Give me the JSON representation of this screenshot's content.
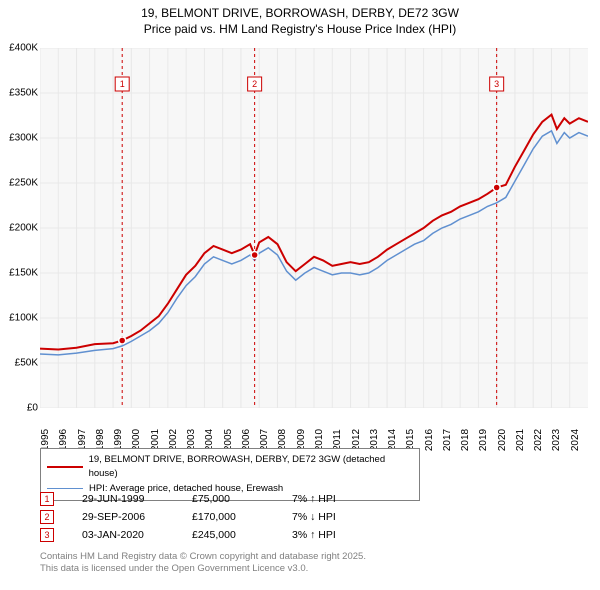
{
  "title": {
    "line1": "19, BELMONT DRIVE, BORROWASH, DERBY, DE72 3GW",
    "line2": "Price paid vs. HM Land Registry's House Price Index (HPI)",
    "fontsize": 12
  },
  "chart": {
    "type": "line",
    "background_color": "#f7f7f7",
    "grid_color": "#e8e8e8",
    "xlim": [
      1995,
      2025
    ],
    "ylim": [
      0,
      400000
    ],
    "y_ticks": [
      0,
      50000,
      100000,
      150000,
      200000,
      250000,
      300000,
      350000,
      400000
    ],
    "y_tick_labels": [
      "£0",
      "£50K",
      "£100K",
      "£150K",
      "£200K",
      "£250K",
      "£300K",
      "£350K",
      "£400K"
    ],
    "x_ticks": [
      1995,
      1996,
      1997,
      1998,
      1999,
      2000,
      2001,
      2002,
      2003,
      2004,
      2005,
      2006,
      2007,
      2008,
      2009,
      2010,
      2011,
      2012,
      2013,
      2014,
      2015,
      2016,
      2017,
      2018,
      2019,
      2020,
      2021,
      2022,
      2023,
      2024
    ],
    "series": [
      {
        "id": "price_paid",
        "label": "19, BELMONT DRIVE, BORROWASH, DERBY, DE72 3GW (detached house)",
        "color": "#cc0000",
        "line_width": 2,
        "points": [
          [
            1995,
            66000
          ],
          [
            1996,
            65000
          ],
          [
            1997,
            67000
          ],
          [
            1998,
            71000
          ],
          [
            1999,
            72000
          ],
          [
            1999.5,
            75000
          ],
          [
            2000,
            80000
          ],
          [
            2000.5,
            86000
          ],
          [
            2001,
            94000
          ],
          [
            2001.5,
            102000
          ],
          [
            2002,
            116000
          ],
          [
            2002.5,
            132000
          ],
          [
            2003,
            148000
          ],
          [
            2003.5,
            158000
          ],
          [
            2004,
            172000
          ],
          [
            2004.5,
            180000
          ],
          [
            2005,
            176000
          ],
          [
            2005.5,
            172000
          ],
          [
            2006,
            176000
          ],
          [
            2006.5,
            182000
          ],
          [
            2006.75,
            170000
          ],
          [
            2007,
            184000
          ],
          [
            2007.5,
            190000
          ],
          [
            2008,
            182000
          ],
          [
            2008.5,
            162000
          ],
          [
            2009,
            152000
          ],
          [
            2009.5,
            160000
          ],
          [
            2010,
            168000
          ],
          [
            2010.5,
            164000
          ],
          [
            2011,
            158000
          ],
          [
            2011.5,
            160000
          ],
          [
            2012,
            162000
          ],
          [
            2012.5,
            160000
          ],
          [
            2013,
            162000
          ],
          [
            2013.5,
            168000
          ],
          [
            2014,
            176000
          ],
          [
            2014.5,
            182000
          ],
          [
            2015,
            188000
          ],
          [
            2015.5,
            194000
          ],
          [
            2016,
            200000
          ],
          [
            2016.5,
            208000
          ],
          [
            2017,
            214000
          ],
          [
            2017.5,
            218000
          ],
          [
            2018,
            224000
          ],
          [
            2018.5,
            228000
          ],
          [
            2019,
            232000
          ],
          [
            2019.5,
            238000
          ],
          [
            2020,
            245000
          ],
          [
            2020.5,
            248000
          ],
          [
            2021,
            268000
          ],
          [
            2021.5,
            286000
          ],
          [
            2022,
            304000
          ],
          [
            2022.5,
            318000
          ],
          [
            2023,
            326000
          ],
          [
            2023.3,
            310000
          ],
          [
            2023.7,
            322000
          ],
          [
            2024,
            316000
          ],
          [
            2024.5,
            322000
          ],
          [
            2025,
            318000
          ]
        ]
      },
      {
        "id": "hpi",
        "label": "HPI: Average price, detached house, Erewash",
        "color": "#6090d0",
        "line_width": 1.5,
        "points": [
          [
            1995,
            60000
          ],
          [
            1996,
            59000
          ],
          [
            1997,
            61000
          ],
          [
            1998,
            64000
          ],
          [
            1999,
            66000
          ],
          [
            1999.5,
            69000
          ],
          [
            2000,
            74000
          ],
          [
            2000.5,
            80000
          ],
          [
            2001,
            86000
          ],
          [
            2001.5,
            94000
          ],
          [
            2002,
            106000
          ],
          [
            2002.5,
            122000
          ],
          [
            2003,
            136000
          ],
          [
            2003.5,
            146000
          ],
          [
            2004,
            160000
          ],
          [
            2004.5,
            168000
          ],
          [
            2005,
            164000
          ],
          [
            2005.5,
            160000
          ],
          [
            2006,
            164000
          ],
          [
            2006.5,
            170000
          ],
          [
            2006.75,
            164000
          ],
          [
            2007,
            172000
          ],
          [
            2007.5,
            178000
          ],
          [
            2008,
            170000
          ],
          [
            2008.5,
            152000
          ],
          [
            2009,
            142000
          ],
          [
            2009.5,
            150000
          ],
          [
            2010,
            156000
          ],
          [
            2010.5,
            152000
          ],
          [
            2011,
            148000
          ],
          [
            2011.5,
            150000
          ],
          [
            2012,
            150000
          ],
          [
            2012.5,
            148000
          ],
          [
            2013,
            150000
          ],
          [
            2013.5,
            156000
          ],
          [
            2014,
            164000
          ],
          [
            2014.5,
            170000
          ],
          [
            2015,
            176000
          ],
          [
            2015.5,
            182000
          ],
          [
            2016,
            186000
          ],
          [
            2016.5,
            194000
          ],
          [
            2017,
            200000
          ],
          [
            2017.5,
            204000
          ],
          [
            2018,
            210000
          ],
          [
            2018.5,
            214000
          ],
          [
            2019,
            218000
          ],
          [
            2019.5,
            224000
          ],
          [
            2020,
            228000
          ],
          [
            2020.5,
            234000
          ],
          [
            2021,
            252000
          ],
          [
            2021.5,
            270000
          ],
          [
            2022,
            288000
          ],
          [
            2022.5,
            302000
          ],
          [
            2023,
            308000
          ],
          [
            2023.3,
            294000
          ],
          [
            2023.7,
            306000
          ],
          [
            2024,
            300000
          ],
          [
            2024.5,
            306000
          ],
          [
            2025,
            302000
          ]
        ]
      }
    ],
    "markers": [
      {
        "n": "1",
        "x": 1999.5,
        "y": 75000,
        "box_y": 360000,
        "date": "29-JUN-1999",
        "price": "£75,000",
        "pct": "7% ↑ HPI"
      },
      {
        "n": "2",
        "x": 2006.75,
        "y": 170000,
        "box_y": 360000,
        "date": "29-SEP-2006",
        "price": "£170,000",
        "pct": "7% ↓ HPI"
      },
      {
        "n": "3",
        "x": 2020.0,
        "y": 245000,
        "box_y": 360000,
        "date": "03-JAN-2020",
        "price": "£245,000",
        "pct": "3% ↑ HPI"
      }
    ],
    "marker_color": "#cc0000",
    "marker_vline_color": "#cc0000"
  },
  "legend": {
    "border_color": "#808080"
  },
  "footer": {
    "line1": "Contains HM Land Registry data © Crown copyright and database right 2025.",
    "line2": "This data is licensed under the Open Government Licence v3.0.",
    "color": "#808080"
  }
}
